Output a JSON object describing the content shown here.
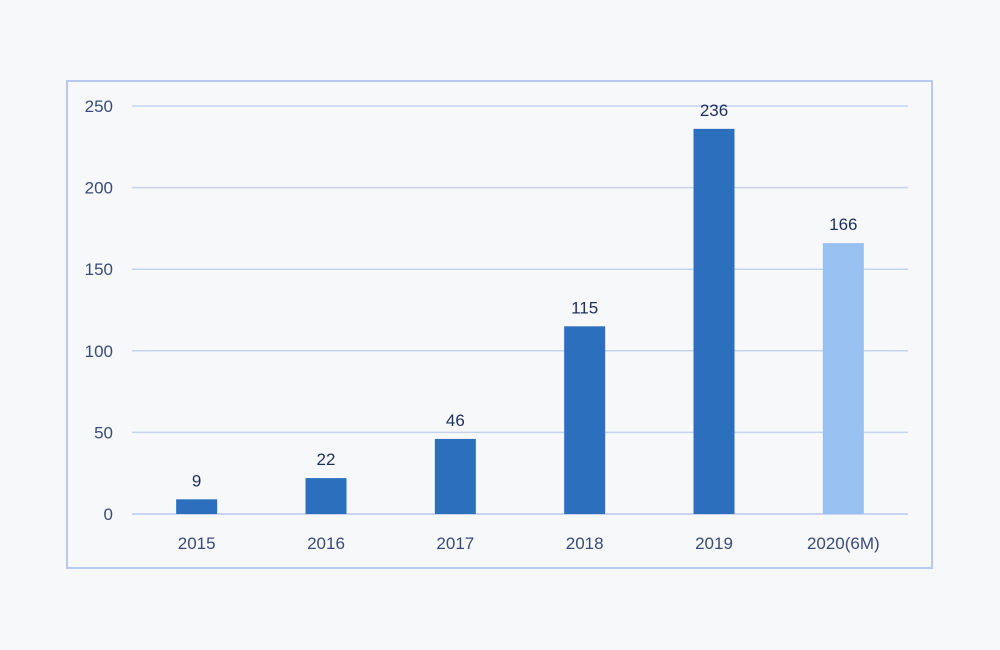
{
  "chart_data": {
    "type": "bar",
    "categories": [
      "2015",
      "2016",
      "2017",
      "2018",
      "2019",
      "2020(6M)"
    ],
    "values": [
      9,
      22,
      46,
      115,
      236,
      166
    ],
    "data_labels": [
      "9",
      "22",
      "46",
      "115",
      "236",
      "166"
    ],
    "y_ticks": [
      "0",
      "50",
      "100",
      "150",
      "200",
      "250"
    ],
    "ylim": [
      0,
      250
    ],
    "grid": true,
    "colors": {
      "bar": "#2b6fbd",
      "bar_partial": "#98c1f2",
      "grid": "#c5d2f0"
    },
    "partial_index": 5
  }
}
